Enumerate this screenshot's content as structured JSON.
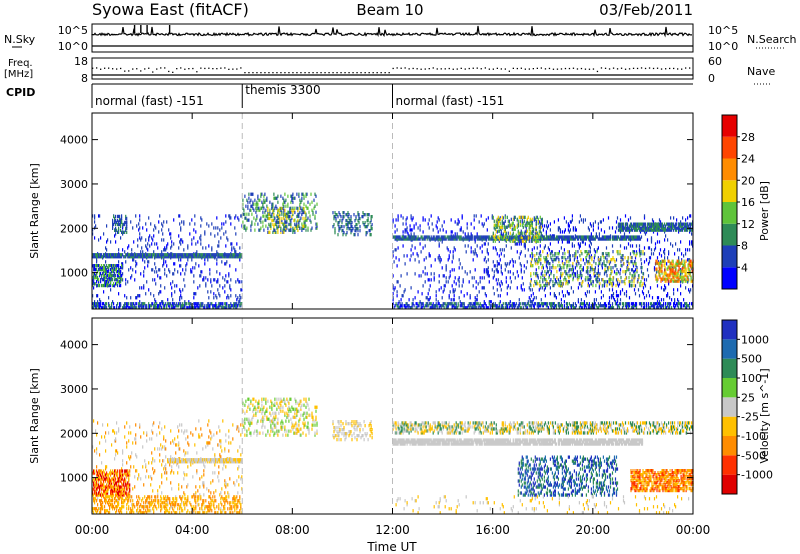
{
  "header": {
    "title_left": "Syowa East (fitACF)",
    "title_center": "Beam 10",
    "title_right": "03/Feb/2011"
  },
  "nsky_panel": {
    "left_label": "N.Sky",
    "right_label": "N.Search",
    "left_ticks": [
      "10^5",
      "10^0"
    ],
    "right_ticks": [
      "10^5",
      "10^0"
    ]
  },
  "freq_panel": {
    "left_label": "Freq.",
    "left_unit": "[MHz]",
    "right_label": "Nave",
    "left_ticks": [
      "18",
      "8"
    ],
    "right_ticks": [
      "60",
      "0"
    ]
  },
  "cpid_panel": {
    "label": "CPID",
    "segments": [
      {
        "label": "normal (fast) -151",
        "start_hour": 0,
        "end_hour": 6
      },
      {
        "label": "themis 3300",
        "start_hour": 6,
        "end_hour": 12
      },
      {
        "label": "normal (fast) -151",
        "start_hour": 12,
        "end_hour": 24
      }
    ]
  },
  "x_axis": {
    "label": "Time UT",
    "ticks": [
      "00:00",
      "04:00",
      "08:00",
      "12:00",
      "16:00",
      "20:00",
      "00:00"
    ],
    "tick_hours": [
      0,
      4,
      8,
      12,
      16,
      20,
      24
    ],
    "range_hours": [
      0,
      24
    ]
  },
  "chart_data": [
    {
      "type": "heatmap",
      "name": "power",
      "ylabel": "Slant Range [km]",
      "yticks": [
        1000,
        2000,
        3000,
        4000
      ],
      "ylim": [
        180,
        4600
      ],
      "xlim_hours": [
        0,
        24
      ],
      "colorbar": {
        "label": "Power [dB]",
        "ticks": [
          "4",
          "8",
          "12",
          "16",
          "20",
          "24",
          "28"
        ],
        "colors": [
          "#0000ff",
          "#1e3fb8",
          "#2e8b57",
          "#5fc43a",
          "#f0d000",
          "#ff8c00",
          "#ff4500",
          "#e60000"
        ]
      }
    },
    {
      "type": "heatmap",
      "name": "velocity",
      "ylabel": "Slant Range [km]",
      "yticks": [
        1000,
        2000,
        3000,
        4000
      ],
      "ylim": [
        180,
        4600
      ],
      "xlim_hours": [
        0,
        24
      ],
      "colorbar": {
        "label": "Velocity [m s^-1]",
        "ticks": [
          "1000",
          "500",
          "100",
          "25",
          "-25",
          "-100",
          "-500",
          "-1000"
        ],
        "colors": [
          "#2030c0",
          "#1e6bb0",
          "#2e8b57",
          "#66cc33",
          "#c8c8c8",
          "#ffc000",
          "#ff8c00",
          "#ff3000",
          "#e00000"
        ]
      }
    }
  ]
}
